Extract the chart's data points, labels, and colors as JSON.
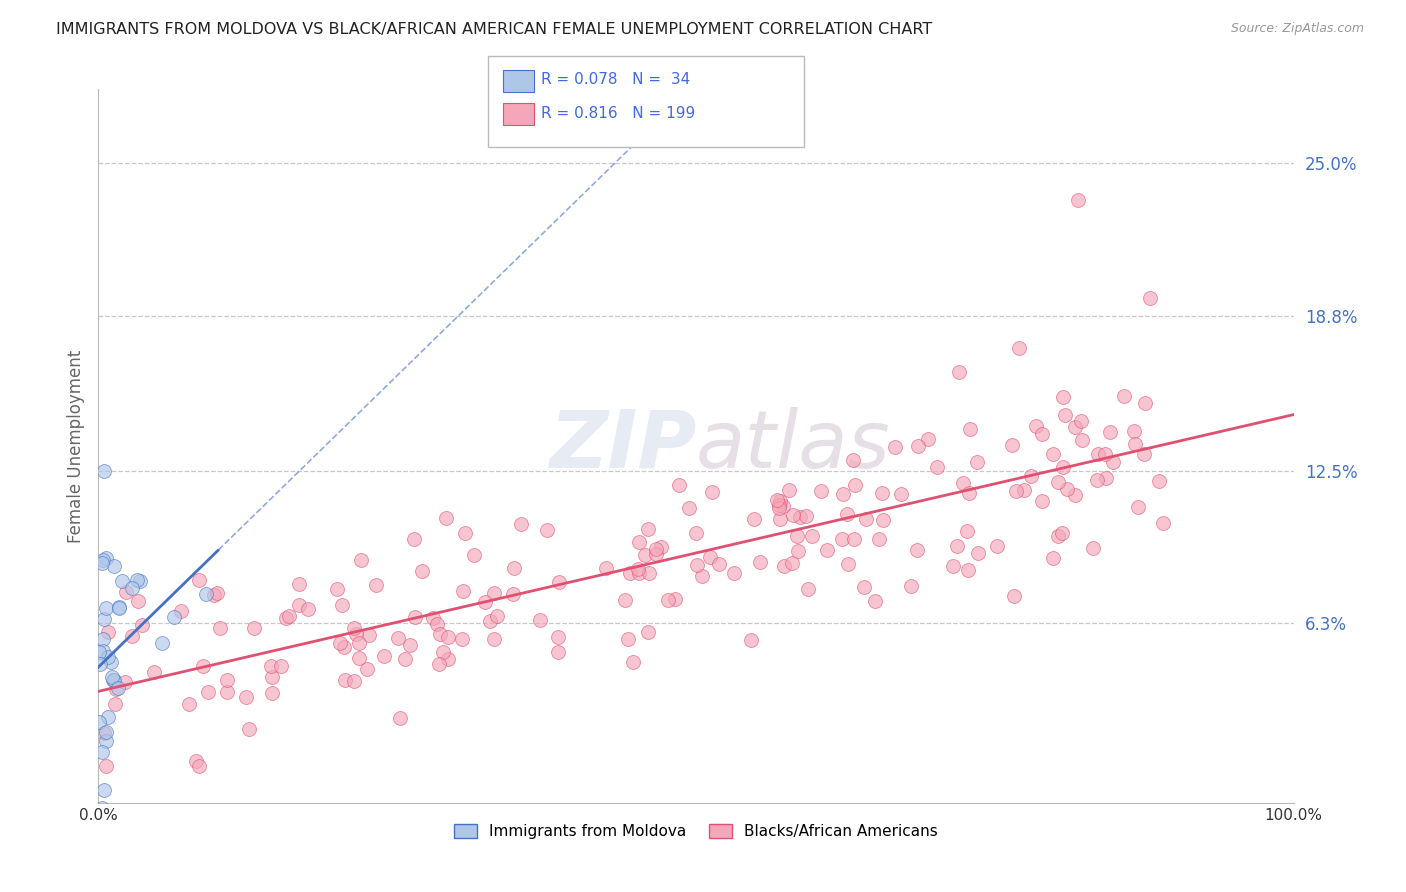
{
  "title": "IMMIGRANTS FROM MOLDOVA VS BLACK/AFRICAN AMERICAN FEMALE UNEMPLOYMENT CORRELATION CHART",
  "source": "Source: ZipAtlas.com",
  "ylabel": "Female Unemployment",
  "watermark": "ZIPatlas",
  "legend_entries": [
    {
      "label": "Immigrants from Moldova",
      "R": 0.078,
      "N": 34,
      "color": "#aec6e8",
      "line_color": "#4472c4"
    },
    {
      "label": "Blacks/African Americans",
      "R": 0.816,
      "N": 199,
      "color": "#f4a7b9",
      "line_color": "#e05070"
    }
  ],
  "xlim": [
    0,
    1.0
  ],
  "ylim": [
    -0.01,
    0.28
  ],
  "ytick_vals": [
    0.063,
    0.125,
    0.188,
    0.25
  ],
  "ytick_labels": [
    "6.3%",
    "12.5%",
    "18.8%",
    "25.0%"
  ],
  "xtick_vals": [
    0.0,
    1.0
  ],
  "xtick_labels": [
    "0.0%",
    "100.0%"
  ],
  "grid_color": "#c8c8c8",
  "background": "#ffffff",
  "title_color": "#222222",
  "axis_label_color": "#666666",
  "blue_scatter_color": "#aec6e8",
  "pink_scatter_color": "#f4a7b9",
  "blue_line_color": "#4472c4",
  "pink_line_color": "#e05070",
  "ytick_label_color": "#4472c4",
  "legend_R_color": "#4169e1",
  "seed": 42
}
